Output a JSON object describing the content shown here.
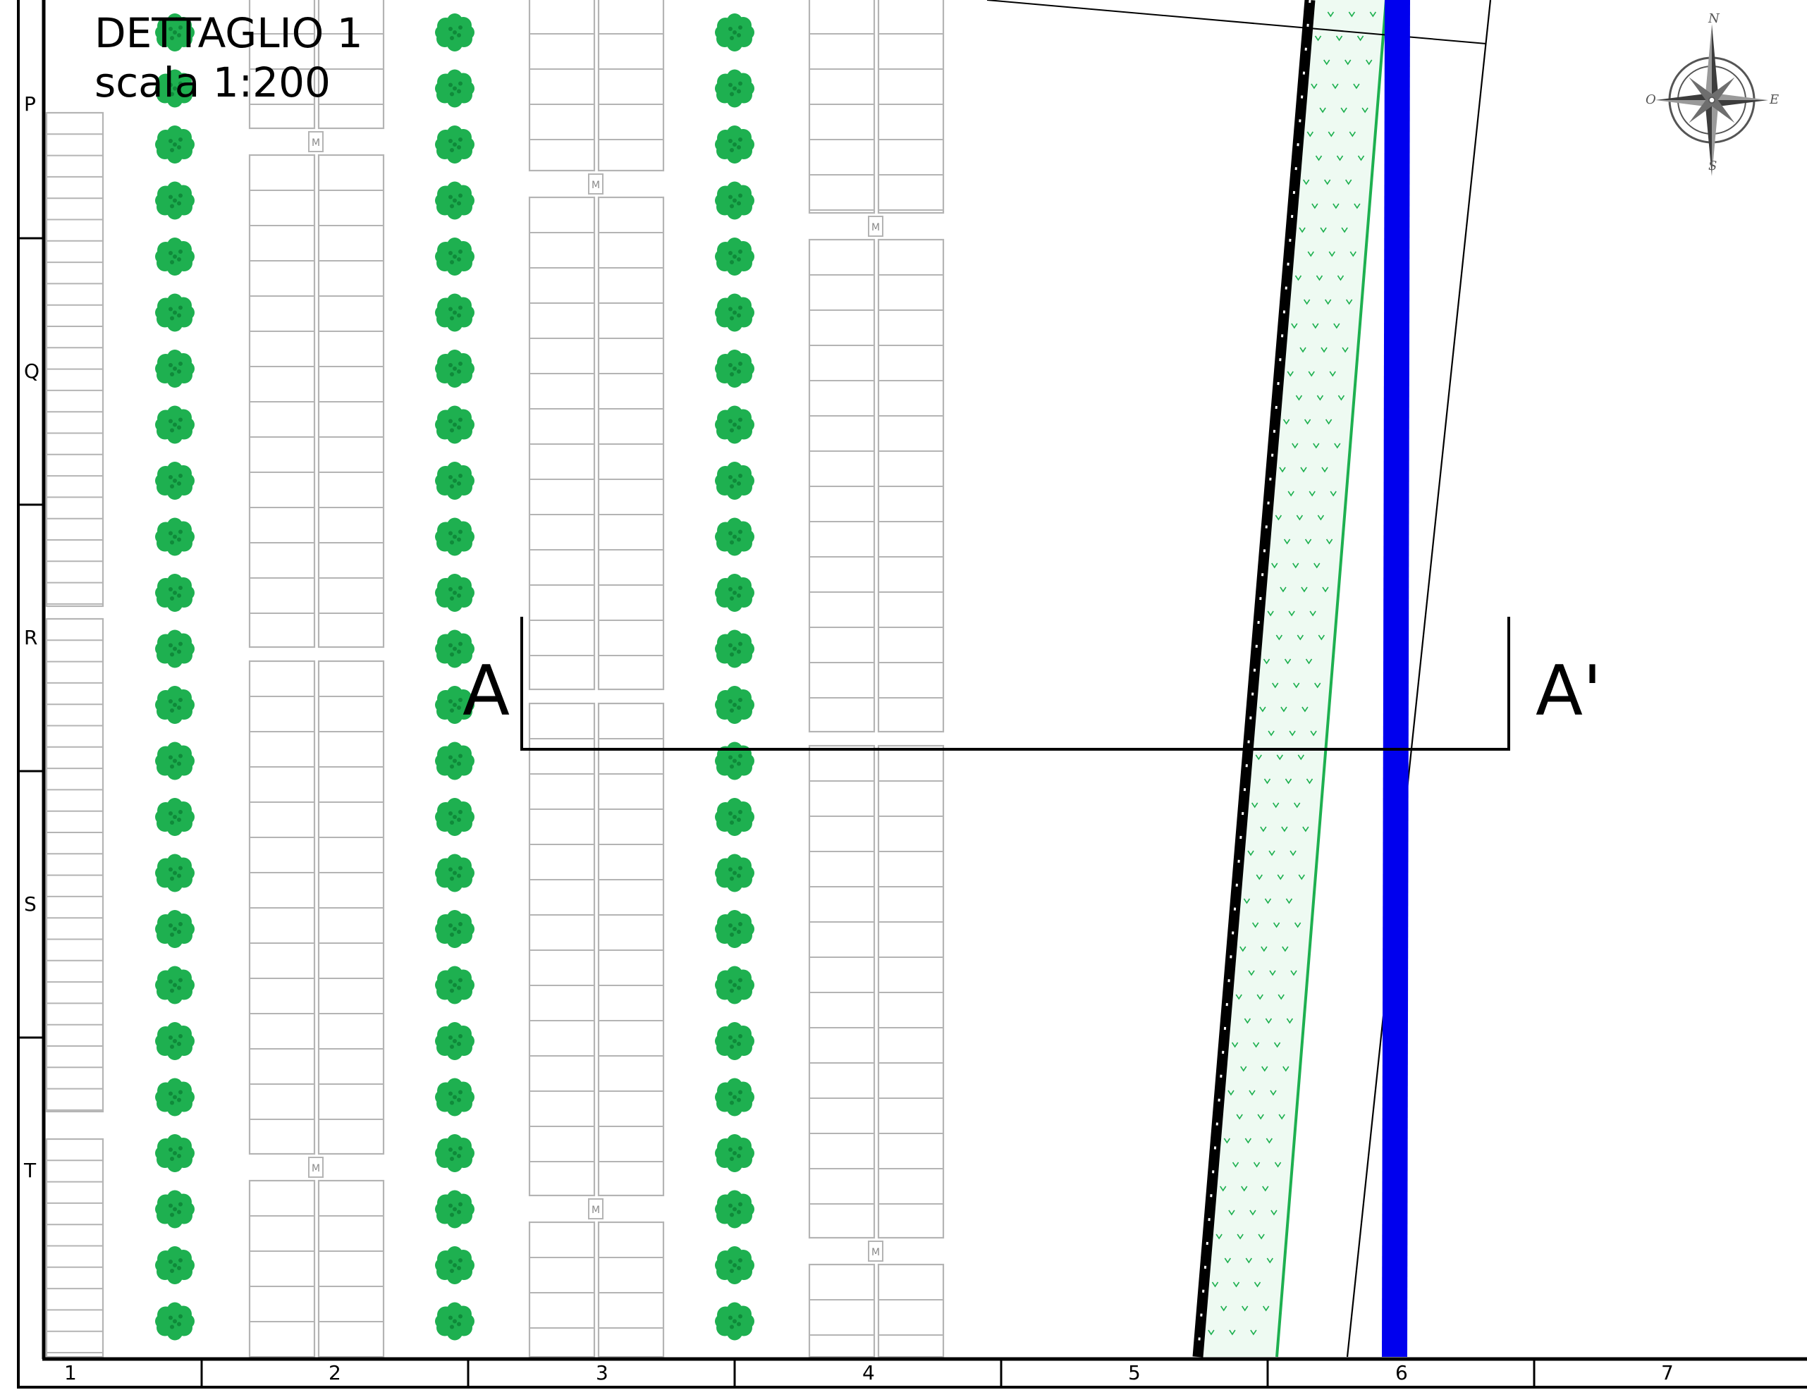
{
  "title": {
    "line1": "DETTAGLIO 1",
    "line2": "scala 1:200"
  },
  "section": {
    "start_label": "A",
    "end_label": "A'"
  },
  "grid": {
    "rows": [
      "P",
      "Q",
      "R",
      "S",
      "T"
    ],
    "columns": [
      "1",
      "2",
      "3",
      "4",
      "5",
      "6",
      "7"
    ]
  },
  "compass": {
    "north": "N",
    "south": "S",
    "east": "E",
    "west": "O"
  },
  "panel_marker": "M",
  "colors": {
    "frame": "#000000",
    "panel_stroke": "#b4b4b4",
    "tree": "#1eb050",
    "tree_dark": "#0f8a3a",
    "hedge_line": "#1eb050",
    "hedge_fill": "#eefaf2",
    "canal": "#0000ee",
    "fence": "#000000",
    "compass": "#555555"
  },
  "icons": {
    "tree": "tree-icon",
    "compass": "compass-rose-icon",
    "inverter": "inverter-box-icon"
  }
}
